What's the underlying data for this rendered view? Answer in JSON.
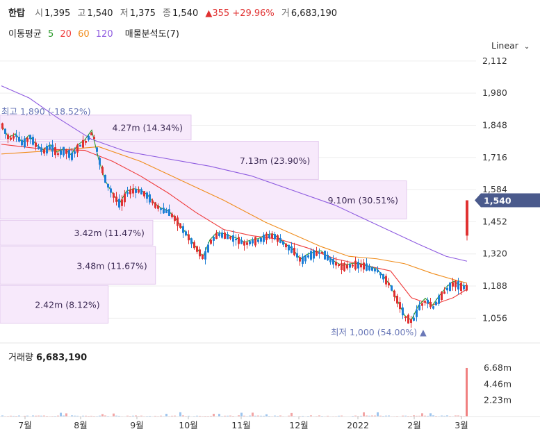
{
  "header": {
    "name": "한탑",
    "open_label": "시",
    "open": "1,395",
    "high_label": "고",
    "high": "1,540",
    "low_label": "저",
    "low": "1,375",
    "close_label": "종",
    "close": "1,540",
    "change": "▲355 +29.96%",
    "volume_label": "거",
    "volume": "6,683,190"
  },
  "ma_legend": {
    "label": "이동평균",
    "p5": "5",
    "p20": "20",
    "p60": "60",
    "p120": "120",
    "profile": "매물분석도(7)",
    "colors": {
      "p5": "#2b9a2b",
      "p20": "#ef3b3b",
      "p60": "#f08c1a",
      "p120": "#8e5be0"
    }
  },
  "scale_mode": "Linear",
  "price_axis": {
    "ticks": [
      "2,112",
      "1,980",
      "1,848",
      "1,716",
      "1,584",
      "1,452",
      "1,320",
      "1,188",
      "1,056"
    ],
    "current": "1,540"
  },
  "volume_axis": {
    "ticks": [
      "6.68m",
      "4.46m",
      "2.23m"
    ]
  },
  "x_axis": {
    "ticks": [
      "7월",
      "8월",
      "9월",
      "10월",
      "11월",
      "12월",
      "2022",
      "2월",
      "3월"
    ]
  },
  "annotations": {
    "high": "최고 1,890 (-18.52%)",
    "low": "최저 1,000 (54.00%)"
  },
  "volume_title": {
    "label": "거래량",
    "value": "6,683,190"
  },
  "chart_data": {
    "type": "candlestick",
    "price_range": [
      1000,
      2140
    ],
    "profile_bars": [
      {
        "range": [
          1782,
          1890
        ],
        "label": "4.27m (14.34%)"
      },
      {
        "range": [
          1620,
          1782
        ],
        "label": "7.13m (23.90%)"
      },
      {
        "range": [
          1458,
          1620
        ],
        "label": "9.10m (30.51%)"
      },
      {
        "range": [
          1350,
          1458
        ],
        "label": "3.42m (11.47%)"
      },
      {
        "range": [
          1190,
          1350
        ],
        "label": "3.48m (11.67%)"
      },
      {
        "range": [
          1030,
          1190
        ],
        "label": "2.42m (8.12%)"
      }
    ],
    "price_path": [
      [
        0,
        1845
      ],
      [
        10,
        1790
      ],
      [
        20,
        1805
      ],
      [
        30,
        1770
      ],
      [
        40,
        1800
      ],
      [
        50,
        1760
      ],
      [
        60,
        1740
      ],
      [
        70,
        1760
      ],
      [
        80,
        1730
      ],
      [
        90,
        1745
      ],
      [
        100,
        1720
      ],
      [
        110,
        1760
      ],
      [
        120,
        1780
      ],
      [
        130,
        1820
      ],
      [
        140,
        1700
      ],
      [
        150,
        1610
      ],
      [
        160,
        1560
      ],
      [
        170,
        1520
      ],
      [
        180,
        1570
      ],
      [
        190,
        1580
      ],
      [
        200,
        1575
      ],
      [
        210,
        1555
      ],
      [
        220,
        1520
      ],
      [
        230,
        1500
      ],
      [
        240,
        1490
      ],
      [
        250,
        1460
      ],
      [
        260,
        1420
      ],
      [
        270,
        1380
      ],
      [
        280,
        1340
      ],
      [
        290,
        1300
      ],
      [
        300,
        1370
      ],
      [
        310,
        1400
      ],
      [
        320,
        1395
      ],
      [
        330,
        1385
      ],
      [
        340,
        1375
      ],
      [
        350,
        1360
      ],
      [
        360,
        1370
      ],
      [
        370,
        1375
      ],
      [
        380,
        1390
      ],
      [
        390,
        1395
      ],
      [
        400,
        1375
      ],
      [
        410,
        1350
      ],
      [
        420,
        1330
      ],
      [
        430,
        1290
      ],
      [
        440,
        1310
      ],
      [
        450,
        1320
      ],
      [
        460,
        1325
      ],
      [
        470,
        1300
      ],
      [
        480,
        1280
      ],
      [
        490,
        1265
      ],
      [
        500,
        1270
      ],
      [
        510,
        1275
      ],
      [
        520,
        1270
      ],
      [
        530,
        1260
      ],
      [
        540,
        1250
      ],
      [
        550,
        1220
      ],
      [
        560,
        1180
      ],
      [
        570,
        1120
      ],
      [
        580,
        1060
      ],
      [
        590,
        1040
      ],
      [
        600,
        1100
      ],
      [
        610,
        1130
      ],
      [
        620,
        1100
      ],
      [
        630,
        1140
      ],
      [
        640,
        1175
      ],
      [
        650,
        1200
      ],
      [
        660,
        1185
      ],
      [
        670,
        1180
      ]
    ],
    "last_candle": {
      "open": 1395,
      "high": 1540,
      "low": 1375,
      "close": 1540
    },
    "ma_paths": {
      "p20": [
        [
          0,
          1770
        ],
        [
          60,
          1750
        ],
        [
          120,
          1745
        ],
        [
          160,
          1700
        ],
        [
          200,
          1640
        ],
        [
          240,
          1570
        ],
        [
          280,
          1490
        ],
        [
          320,
          1420
        ],
        [
          360,
          1395
        ],
        [
          400,
          1380
        ],
        [
          440,
          1345
        ],
        [
          480,
          1300
        ],
        [
          520,
          1275
        ],
        [
          560,
          1250
        ],
        [
          590,
          1140
        ],
        [
          620,
          1110
        ],
        [
          650,
          1140
        ],
        [
          670,
          1175
        ]
      ],
      "p60": [
        [
          0,
          1730
        ],
        [
          80,
          1745
        ],
        [
          140,
          1760
        ],
        [
          200,
          1700
        ],
        [
          260,
          1620
        ],
        [
          320,
          1540
        ],
        [
          380,
          1450
        ],
        [
          420,
          1400
        ],
        [
          460,
          1350
        ],
        [
          500,
          1310
        ],
        [
          540,
          1300
        ],
        [
          580,
          1280
        ],
        [
          620,
          1240
        ],
        [
          650,
          1215
        ],
        [
          670,
          1200
        ]
      ],
      "p120": [
        [
          0,
          2010
        ],
        [
          40,
          1960
        ],
        [
          80,
          1880
        ],
        [
          130,
          1790
        ],
        [
          180,
          1740
        ],
        [
          240,
          1710
        ],
        [
          300,
          1680
        ],
        [
          360,
          1640
        ],
        [
          420,
          1580
        ],
        [
          480,
          1520
        ],
        [
          540,
          1440
        ],
        [
          600,
          1360
        ],
        [
          640,
          1310
        ],
        [
          670,
          1290
        ]
      ]
    },
    "volume_max": 6683190,
    "last_volume": 6683190
  }
}
